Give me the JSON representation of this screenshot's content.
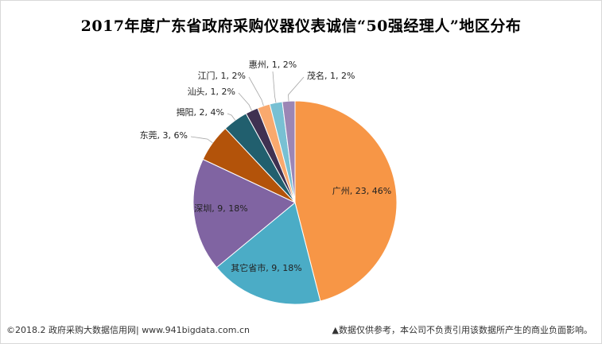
{
  "chart_data": {
    "type": "pie",
    "title": "2017年度广东省政府采购仪器仪表诚信“50强经理人”地区分布",
    "slices": [
      {
        "label": "广州",
        "value": 23,
        "percent": "46%",
        "color": "#F79646"
      },
      {
        "label": "其它省市",
        "value": 9,
        "percent": "18%",
        "color": "#4BACC6"
      },
      {
        "label": "深圳",
        "value": 9,
        "percent": "18%",
        "color": "#8064A2"
      },
      {
        "label": "东莞",
        "value": 3,
        "percent": "6%",
        "color": "#B3530A"
      },
      {
        "label": "揭阳",
        "value": 2,
        "percent": "4%",
        "color": "#215F6E"
      },
      {
        "label": "汕头",
        "value": 1,
        "percent": "2%",
        "color": "#3F3151"
      },
      {
        "label": "江门",
        "value": 1,
        "percent": "2%",
        "color": "#F9A96E"
      },
      {
        "label": "惠州",
        "value": 1,
        "percent": "2%",
        "color": "#78C0D3"
      },
      {
        "label": "茂名",
        "value": 1,
        "percent": "2%",
        "color": "#9B86B5"
      }
    ]
  },
  "footer": {
    "source": "©2018.2 政府采购大数据信用网| www.941bigdata.com.cn",
    "disclaimer": "▲数据仅供参考，本公司不负责引用该数据所产生的商业负面影响。"
  }
}
